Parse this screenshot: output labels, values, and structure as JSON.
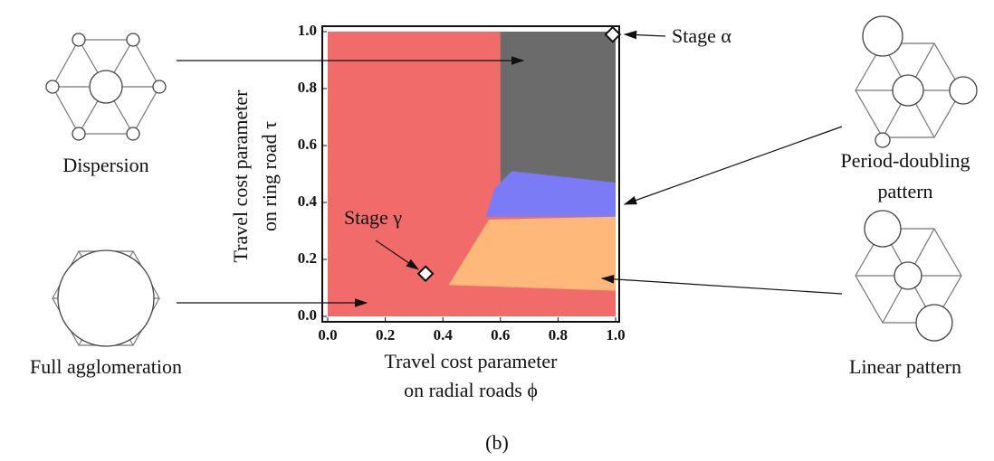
{
  "chart_data": {
    "type": "phase-diagram",
    "xlabel": [
      "Travel cost parameter",
      "on radial roads ϕ"
    ],
    "ylabel": [
      "Travel cost parameter",
      "on ring road τ"
    ],
    "xlim": [
      0,
      1
    ],
    "ylim": [
      0,
      1
    ],
    "xticks": [
      {
        "value": 0,
        "label": "0.0"
      },
      0.2,
      0.4,
      0.6,
      0.8,
      {
        "value": 1,
        "label": "1.0"
      }
    ],
    "yticks": [
      {
        "value": 0,
        "label": "0.0"
      },
      0.2,
      0.4,
      0.6,
      0.8,
      {
        "value": 1,
        "label": "1.0"
      }
    ],
    "series": [
      {
        "name": [
          "Full agglomeration"
        ],
        "color": "#f26b6b",
        "label_color": "#e8262b",
        "x": [
          0,
          1,
          1,
          0
        ],
        "y": [
          0,
          0,
          1,
          1
        ]
      },
      {
        "name": [
          "Dispersion"
        ],
        "color": "#6b6b6b",
        "label_color": "#111111",
        "x": [
          0.6,
          1,
          1,
          0.6
        ],
        "y": [
          1,
          1,
          0.4,
          0.4
        ]
      },
      {
        "name": [
          "Period-doubling",
          "pattern"
        ],
        "color": "#7b7bf5",
        "label_color": "#2323d6",
        "x": [
          0.55,
          0.58,
          0.64,
          1,
          1,
          0.55
        ],
        "y": [
          0.35,
          0.45,
          0.51,
          0.47,
          0.35,
          0.35
        ]
      },
      {
        "name": [
          "Linear pattern"
        ],
        "color": "#fdb87a",
        "label_color": "#f08c1e",
        "x": [
          0.42,
          0.56,
          1,
          1,
          0.42
        ],
        "y": [
          0.11,
          0.34,
          0.35,
          0.09,
          0.11
        ]
      }
    ],
    "points": [
      {
        "label": "Stage α",
        "x": 0.99,
        "y": 0.99
      },
      {
        "label": "Stage γ",
        "x": 0.34,
        "y": 0.15
      }
    ],
    "caption": "(b)"
  }
}
